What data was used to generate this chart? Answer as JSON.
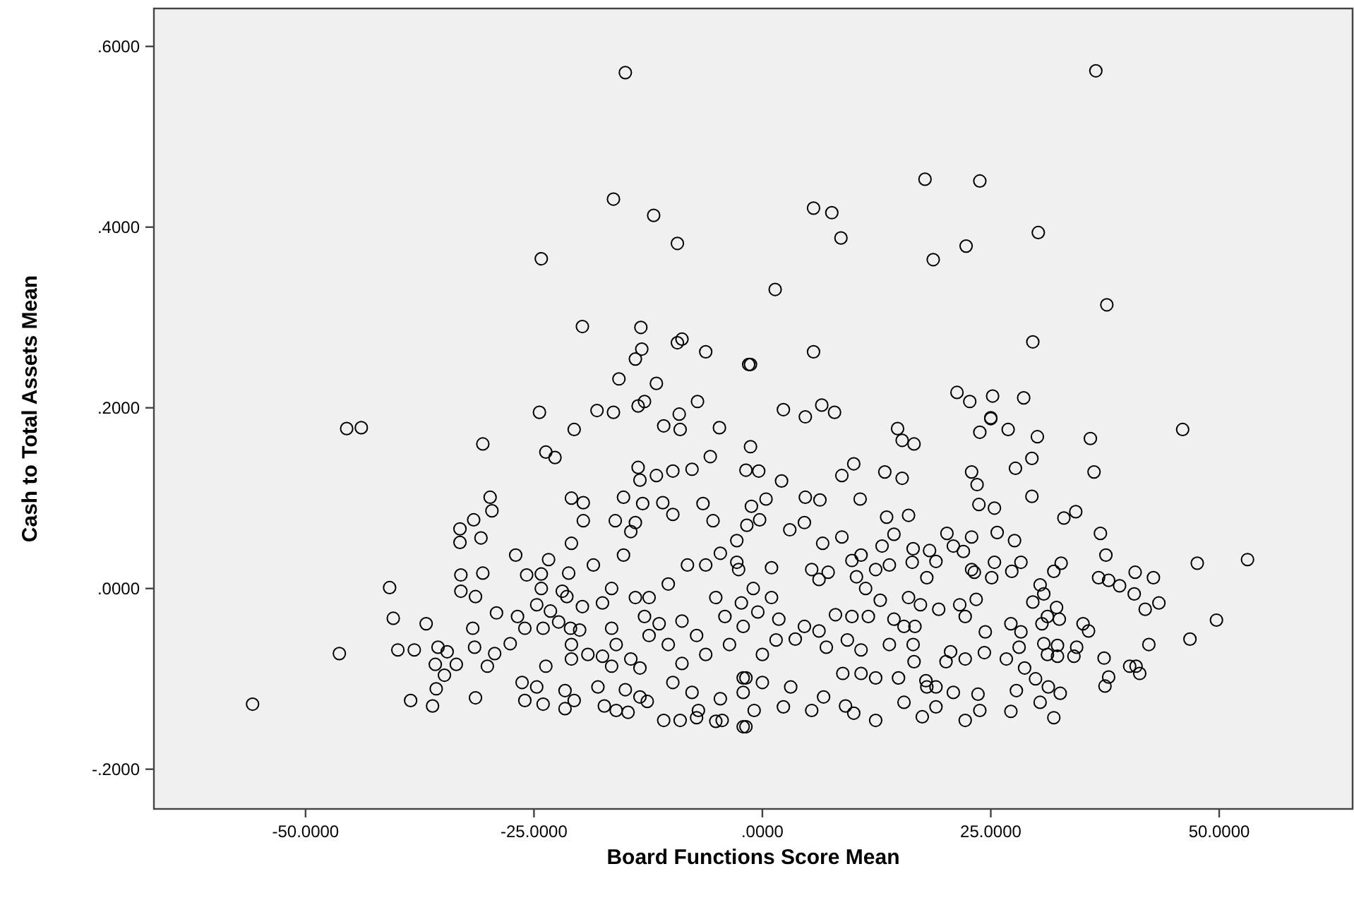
{
  "chart_data": {
    "type": "scatter",
    "xlabel": "Board Functions Score Mean",
    "ylabel": "Cash to Total Assets Mean",
    "marker": "circle",
    "xlim": [
      -66.6,
      64.6
    ],
    "ylim": [
      -0.244,
      0.642
    ],
    "xticks": [
      {
        "value": -50,
        "label": "-50.0000"
      },
      {
        "value": -25,
        "label": "-25.0000"
      },
      {
        "value": 0,
        "label": ".0000"
      },
      {
        "value": 25,
        "label": "25.0000"
      },
      {
        "value": 50,
        "label": "50.0000"
      }
    ],
    "yticks": [
      {
        "value": -0.2,
        "label": "-.2000"
      },
      {
        "value": 0,
        "label": ".0000"
      },
      {
        "value": 0.2,
        "label": ".2000"
      },
      {
        "value": 0.4,
        "label": ".4000"
      },
      {
        "value": 0.6,
        "label": ".6000"
      }
    ],
    "series": [
      {
        "color": "#000000",
        "x": [
          -15.0,
          -16.3,
          -11.9,
          -9.3,
          -24.2,
          -19.7,
          -13.3,
          -13.2,
          -13.9,
          -9.3,
          -8.8,
          -6.2,
          -1.5,
          -15.7,
          -11.6,
          -13.6,
          -12.9,
          -7.1,
          -24.4,
          -18.1,
          -16.3,
          -9.1,
          36.5,
          17.8,
          23.8,
          5.6,
          7.6,
          8.6,
          30.2,
          22.3,
          18.7,
          1.4,
          37.7,
          29.6,
          5.6,
          -1.3,
          21.3,
          22.7,
          25.2,
          28.6,
          2.3,
          4.7,
          6.5,
          7.9,
          25.0,
          46.0,
          -45.5,
          -43.9,
          -30.6,
          -23.7,
          -22.7,
          -20.6,
          -4.7,
          -10.8,
          -9.0,
          -13.6,
          -11.6,
          -9.8,
          -7.7,
          -5.7,
          -13.4,
          -13.1,
          -10.9,
          -9.8,
          -15.2,
          -6.5,
          -5.4,
          -20.9,
          -19.6,
          -19.6,
          -29.8,
          -29.6,
          -31.6,
          -33.1,
          -33.1,
          -30.8,
          -27.0,
          -23.4,
          -20.9,
          -16.1,
          -13.9,
          -14.4,
          -2.8,
          -2.8,
          -33.0,
          -30.6,
          -33.0,
          -31.4,
          -40.8,
          -40.4,
          -36.8,
          -46.3,
          -39.9,
          -38.1,
          -35.5,
          -34.5,
          -33.5,
          -35.8,
          -34.8,
          -35.7,
          -38.5,
          -36.1,
          -55.8,
          -31.4,
          -31.7,
          -31.5,
          -29.3,
          -30.1,
          -29.1,
          -27.6,
          -26.8,
          -26.0,
          -25.8,
          -24.2,
          -24.2,
          -24.7,
          -23.2,
          -24.0,
          -22.3,
          -21.9,
          -21.4,
          -21.2,
          -19.7,
          -21.0,
          -20.0,
          -20.9,
          -20.9,
          -19.1,
          -17.5,
          -23.7,
          -26.3,
          -24.7,
          -24.0,
          -26.0,
          -21.6,
          -20.6,
          -21.6,
          -18.0,
          -17.3,
          -16.0,
          -14.7,
          -16.5,
          -15.0,
          -13.4,
          -12.6,
          -16.5,
          -16.0,
          -14.4,
          -13.4,
          -12.4,
          -12.9,
          -13.9,
          -12.4,
          -11.3,
          -10.3,
          -8.8,
          -9.8,
          -7.7,
          -6.2,
          -7.2,
          -8.8,
          -5.1,
          -4.1,
          -3.6,
          -17.5,
          -16.5,
          -15.2,
          -18.5,
          -10.3,
          -8.2,
          -6.2,
          -4.6,
          -10.8,
          -9.0,
          -7.2,
          -5.1,
          -4.4,
          -2.1,
          -4.6,
          -7.0,
          -1.8,
          -2.1,
          -1.3,
          -1.8,
          -0.4,
          2.1,
          14.8,
          15.3,
          16.6,
          25.0,
          23.8,
          26.9,
          30.1,
          35.9,
          36.3,
          29.5,
          27.7,
          22.9,
          23.5,
          29.5,
          23.7,
          25.4,
          8.7,
          10.0,
          13.4,
          15.3,
          10.7,
          4.7,
          6.3,
          0.4,
          -1.2,
          -0.3,
          -1.7,
          4.6,
          3.0,
          8.7,
          6.6,
          13.6,
          16.0,
          14.4,
          20.2,
          22.9,
          25.7,
          27.6,
          20.9,
          22.0,
          18.3,
          19.0,
          18.0,
          16.5,
          16.4,
          13.1,
          33.0,
          34.3,
          37.0,
          37.6,
          47.6,
          53.1,
          32.7,
          31.9,
          25.4,
          28.3,
          27.3,
          22.9,
          23.2,
          25.1,
          36.8,
          37.9,
          39.1,
          40.8,
          42.8,
          40.7,
          41.9,
          43.4,
          30.4,
          30.8,
          29.6,
          32.2,
          32.5,
          31.2,
          30.6,
          35.1,
          35.7,
          49.7,
          46.8,
          42.3,
          40.2,
          41.3,
          40.9,
          37.4,
          37.9,
          37.5,
          30.8,
          32.3,
          34.4,
          31.2,
          32.3,
          34.1,
          28.7,
          29.9,
          31.3,
          32.6,
          30.4,
          31.9,
          27.8,
          27.2,
          27.2,
          28.3,
          28.1,
          26.7,
          24.4,
          21.6,
          23.4,
          22.2,
          19.3,
          20.6,
          22.2,
          24.3,
          20.1,
          20.9,
          23.6,
          23.8,
          22.2,
          19.0,
          17.5,
          16.6,
          17.9,
          19.0,
          15.5,
          12.4,
          10.0,
          9.1,
          5.4,
          2.3,
          -0.9,
          -1.8,
          5.4,
          6.2,
          7.2,
          9.8,
          10.8,
          12.4,
          13.9,
          10.3,
          11.3,
          12.9,
          16.0,
          17.3,
          8.0,
          9.8,
          11.6,
          14.4,
          15.5,
          16.7,
          4.6,
          6.2,
          7.0,
          9.3,
          10.8,
          13.9,
          16.5,
          3.6,
          1.5,
          0.0,
          -2.1,
          0.0,
          3.1,
          6.7,
          8.8,
          12.4,
          14.9,
          18.0,
          10.8,
          -2.6,
          -1.0,
          1.0,
          -2.3,
          -0.5,
          1.8,
          -2.1,
          1.0
        ],
        "values": [
          0.571,
          0.431,
          0.413,
          0.382,
          0.365,
          0.29,
          0.289,
          0.265,
          0.254,
          0.272,
          0.276,
          0.262,
          0.248,
          0.232,
          0.227,
          0.202,
          0.207,
          0.207,
          0.195,
          0.197,
          0.195,
          0.193,
          0.573,
          0.453,
          0.451,
          0.421,
          0.416,
          0.388,
          0.394,
          0.379,
          0.364,
          0.331,
          0.314,
          0.273,
          0.262,
          0.248,
          0.217,
          0.207,
          0.213,
          0.211,
          0.198,
          0.19,
          0.203,
          0.195,
          0.189,
          0.176,
          0.177,
          0.178,
          0.16,
          0.151,
          0.145,
          0.176,
          0.178,
          0.18,
          0.176,
          0.134,
          0.125,
          0.13,
          0.132,
          0.146,
          0.12,
          0.094,
          0.095,
          0.082,
          0.101,
          0.094,
          0.075,
          0.1,
          0.095,
          0.075,
          0.101,
          0.086,
          0.076,
          0.066,
          0.051,
          0.056,
          0.037,
          0.032,
          0.05,
          0.075,
          0.073,
          0.063,
          0.053,
          0.029,
          0.015,
          0.017,
          -0.003,
          -0.009,
          0.001,
          -0.033,
          -0.039,
          -0.072,
          -0.068,
          -0.068,
          -0.065,
          -0.07,
          -0.084,
          -0.084,
          -0.096,
          -0.111,
          -0.124,
          -0.13,
          -0.128,
          -0.121,
          -0.044,
          -0.065,
          -0.072,
          -0.086,
          -0.027,
          -0.061,
          -0.031,
          -0.044,
          0.015,
          0.016,
          0.0,
          -0.018,
          -0.025,
          -0.044,
          -0.037,
          -0.003,
          -0.009,
          0.017,
          -0.02,
          -0.044,
          -0.046,
          -0.062,
          -0.078,
          -0.073,
          -0.075,
          -0.086,
          -0.104,
          -0.109,
          -0.128,
          -0.124,
          -0.113,
          -0.124,
          -0.133,
          -0.109,
          -0.13,
          -0.135,
          -0.137,
          -0.086,
          -0.112,
          -0.12,
          -0.125,
          -0.044,
          -0.062,
          -0.078,
          -0.088,
          -0.052,
          -0.031,
          -0.01,
          -0.01,
          -0.039,
          -0.062,
          -0.083,
          -0.104,
          -0.115,
          -0.073,
          -0.052,
          -0.036,
          -0.01,
          -0.031,
          -0.062,
          -0.016,
          0.0,
          0.037,
          0.026,
          0.005,
          0.026,
          0.026,
          0.039,
          -0.146,
          -0.146,
          -0.143,
          -0.147,
          -0.146,
          -0.153,
          -0.122,
          -0.135,
          -0.099,
          -0.115,
          0.157,
          0.131,
          0.13,
          0.119,
          0.177,
          0.164,
          0.16,
          0.188,
          0.173,
          0.176,
          0.168,
          0.166,
          0.129,
          0.144,
          0.133,
          0.129,
          0.115,
          0.102,
          0.093,
          0.089,
          0.125,
          0.138,
          0.129,
          0.122,
          0.099,
          0.101,
          0.098,
          0.099,
          0.091,
          0.076,
          0.07,
          0.073,
          0.065,
          0.057,
          0.05,
          0.079,
          0.081,
          0.06,
          0.061,
          0.057,
          0.062,
          0.053,
          0.047,
          0.041,
          0.042,
          0.03,
          0.012,
          0.044,
          0.029,
          0.047,
          0.078,
          0.085,
          0.061,
          0.037,
          0.028,
          0.032,
          0.028,
          0.019,
          0.029,
          0.029,
          0.019,
          0.021,
          0.018,
          0.012,
          0.012,
          0.009,
          0.003,
          0.018,
          0.012,
          -0.006,
          -0.023,
          -0.016,
          0.004,
          -0.006,
          -0.015,
          -0.021,
          -0.034,
          -0.031,
          -0.039,
          -0.039,
          -0.047,
          -0.035,
          -0.056,
          -0.062,
          -0.086,
          -0.094,
          -0.086,
          -0.077,
          -0.098,
          -0.108,
          -0.061,
          -0.063,
          -0.065,
          -0.073,
          -0.075,
          -0.075,
          -0.088,
          -0.1,
          -0.109,
          -0.116,
          -0.126,
          -0.143,
          -0.113,
          -0.136,
          -0.039,
          -0.048,
          -0.065,
          -0.078,
          -0.048,
          -0.018,
          -0.012,
          -0.031,
          -0.023,
          -0.07,
          -0.078,
          -0.071,
          -0.081,
          -0.115,
          -0.117,
          -0.135,
          -0.146,
          -0.131,
          -0.142,
          -0.081,
          -0.102,
          -0.109,
          -0.126,
          -0.146,
          -0.138,
          -0.13,
          -0.135,
          -0.131,
          -0.135,
          -0.153,
          0.021,
          0.01,
          0.018,
          0.031,
          0.037,
          0.021,
          0.026,
          0.013,
          0.0,
          -0.013,
          -0.01,
          -0.018,
          -0.029,
          -0.031,
          -0.031,
          -0.034,
          -0.042,
          -0.042,
          -0.042,
          -0.047,
          -0.065,
          -0.057,
          -0.068,
          -0.062,
          -0.062,
          -0.056,
          -0.057,
          -0.073,
          -0.099,
          -0.104,
          -0.109,
          -0.12,
          -0.094,
          -0.099,
          -0.099,
          -0.109,
          -0.094,
          0.021,
          0.0,
          -0.01,
          -0.016,
          -0.026,
          -0.034,
          -0.042,
          0.023
        ]
      }
    ]
  }
}
